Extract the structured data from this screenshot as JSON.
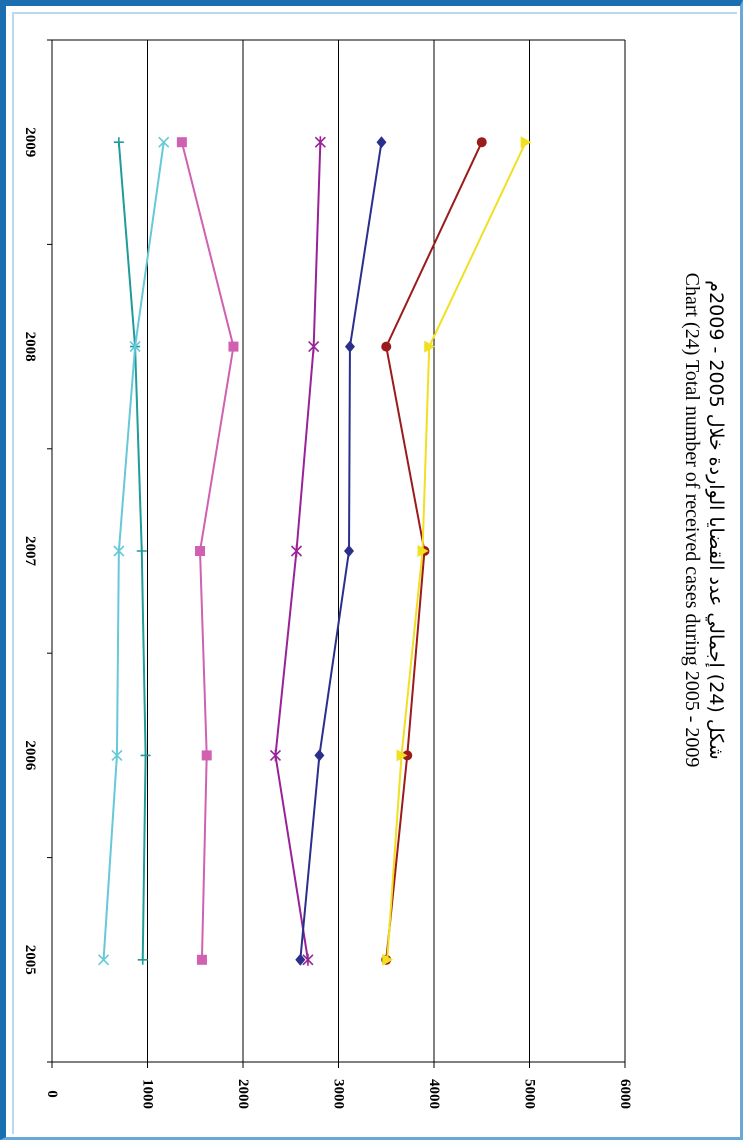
{
  "title_ar": "شكل (24) إجمالي عدد القضايا الواردة خلال 2005 - 2009م",
  "title_en": "Chart (24) Total number of received cases during 2005 - 2009",
  "colors": {
    "frame": "#1a6fb0",
    "grid": "#000000"
  },
  "chart_data": {
    "type": "line",
    "orientation": "rotated-90-clockwise",
    "categories": [
      "2005",
      "2006",
      "2007",
      "2008",
      "2009"
    ],
    "ylim": [
      0,
      6000
    ],
    "y_ticks": [
      "0",
      "1000",
      "2000",
      "3000",
      "4000",
      "5000",
      "6000"
    ],
    "grid": true,
    "series": [
      {
        "color": "#1f9b9a",
        "marker": "plus",
        "values": [
          950,
          980,
          940,
          870,
          700
        ]
      },
      {
        "color": "#66c8d8",
        "marker": "x",
        "values": [
          540,
          680,
          700,
          870,
          1170
        ]
      },
      {
        "color": "#d060b0",
        "marker": "square",
        "values": [
          1570,
          1620,
          1550,
          1900,
          1360
        ]
      },
      {
        "color": "#992299",
        "marker": "star",
        "values": [
          2680,
          2340,
          2560,
          2740,
          2810
        ]
      },
      {
        "color": "#2a2f8c",
        "marker": "diamond",
        "values": [
          2600,
          2800,
          3110,
          3120,
          3450
        ]
      },
      {
        "color": "#9b1a1a",
        "marker": "circle",
        "values": [
          3500,
          3720,
          3900,
          3500,
          4500
        ]
      },
      {
        "color": "#f0e020",
        "marker": "triangle",
        "values": [
          3510,
          3660,
          3880,
          3950,
          4960
        ]
      }
    ]
  }
}
